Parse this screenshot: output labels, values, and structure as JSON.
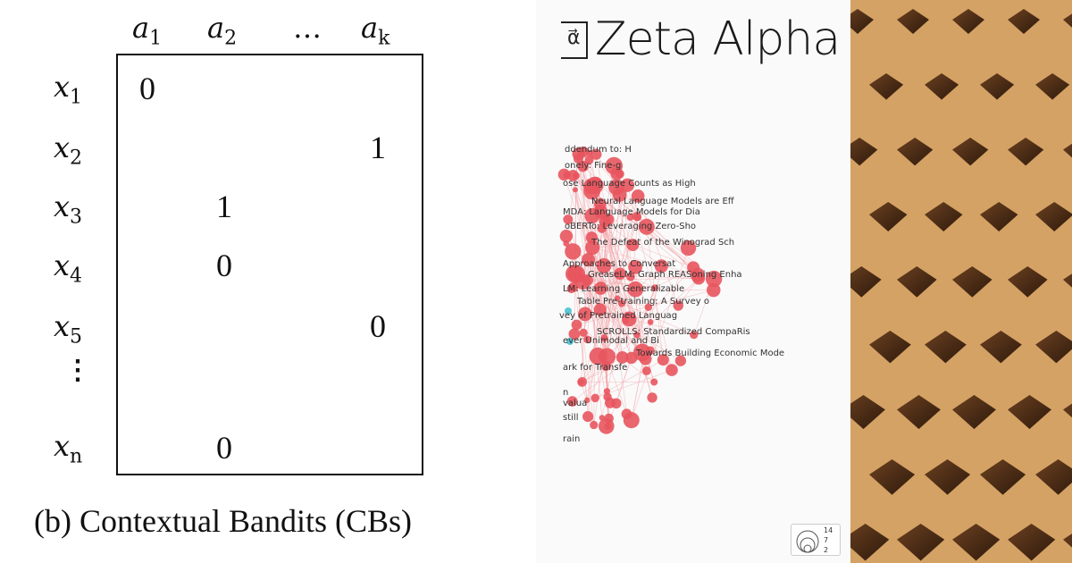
{
  "matrix_figure": {
    "column_headers": [
      {
        "base": "a",
        "sub": "1"
      },
      {
        "base": "a",
        "sub": "2"
      },
      {
        "base": "…",
        "sub": ""
      },
      {
        "base": "a",
        "sub": "k"
      }
    ],
    "row_headers": [
      {
        "base": "x",
        "sub": "1"
      },
      {
        "base": "x",
        "sub": "2"
      },
      {
        "base": "x",
        "sub": "3"
      },
      {
        "base": "x",
        "sub": "4"
      },
      {
        "base": "x",
        "sub": "5"
      },
      {
        "base": "x",
        "sub": "n"
      }
    ],
    "vertical_ellipsis": "⋮",
    "cells": [
      {
        "row": "x1",
        "col": "a1",
        "value": "0"
      },
      {
        "row": "x2",
        "col": "ak",
        "value": "1"
      },
      {
        "row": "x3",
        "col": "a2",
        "value": "1"
      },
      {
        "row": "x4",
        "col": "a2",
        "value": "0"
      },
      {
        "row": "x5",
        "col": "ak",
        "value": "0"
      },
      {
        "row": "xn",
        "col": "a2",
        "value": "0"
      }
    ],
    "caption": "(b) Contextual Bandits (CBs)"
  },
  "zeta_alpha": {
    "logo_glyph": "α⃗",
    "brand_name": "Zeta Alpha",
    "node_color": "#e8555e",
    "edge_color": "#f2a0a5",
    "accent_node_color": "#5bc8d8",
    "graph_labels": [
      "ddendum to: H",
      "onely: Fine-g",
      "ose Language Counts as High",
      "Neural Language Models are Eff",
      "MDA: Language Models for Dia",
      "oBERTo: Leveraging Zero-Sho",
      "The Defeat of the Winograd Sch",
      "Approaches to Conversat",
      "GreaseLM: Graph REASoning Enha",
      "LM: Learning Generalizable",
      "Table Pre-training: A Survey o",
      "vey of Pretrained Languag",
      "SCROLLS: Standardized CompaRis",
      "ever Unimodal and Bi",
      "Towards Building Economic Mode",
      "ark for Transfe",
      "n",
      "valua",
      "still",
      "rain"
    ],
    "legend_values": [
      "14",
      "7",
      "2"
    ]
  },
  "photo": {
    "base_color": "#d4a264",
    "peg_color": "#4a2c16"
  }
}
